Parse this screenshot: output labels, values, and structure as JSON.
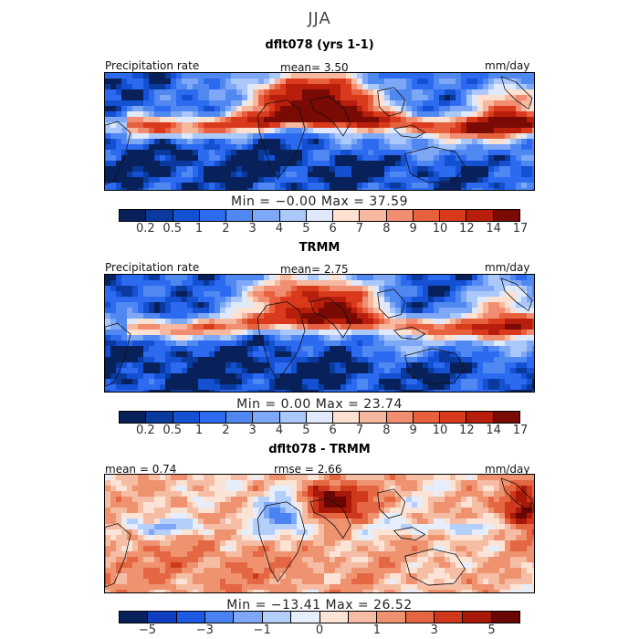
{
  "figure": {
    "season": "JJA"
  },
  "panels": [
    {
      "title": "dflt078 (yrs 1-1)",
      "header_left": "Precipitation rate",
      "header_center": "mean=   3.50",
      "header_right": "mm/day",
      "min_max": "Min =  −0.00  Max =  37.59",
      "colorbar": "abs"
    },
    {
      "title": "TRMM",
      "header_left": "Precipitation rate",
      "header_center": "mean=   2.75",
      "header_right": "mm/day",
      "min_max": "Min =    0.00  Max =  23.74",
      "colorbar": "abs"
    },
    {
      "title": "dflt078 - TRMM",
      "header_left": "mean =   0.74",
      "header_center": "rmse =   2.66",
      "header_right": "mm/day",
      "min_max": "Min = −13.41  Max =  26.52",
      "colorbar": "diff"
    }
  ],
  "colors": {
    "abs": [
      "#08215a",
      "#0a3a9e",
      "#1450d2",
      "#2c6af0",
      "#5088f2",
      "#7ea8f6",
      "#aac8fa",
      "#dfe9fb",
      "#fde0d0",
      "#f7b8a0",
      "#f18e72",
      "#e8613f",
      "#d93a1c",
      "#b81e0c",
      "#7a0a04"
    ],
    "diff": [
      "#08215a",
      "#0f3ec0",
      "#1f5ae6",
      "#4a82f2",
      "#7ea8f6",
      "#b4cffa",
      "#e6eefb",
      "#fbe3d6",
      "#f5bea4",
      "#ee9270",
      "#e46642",
      "#d0381c",
      "#a81808",
      "#6a0602"
    ]
  },
  "chart_data": [
    {
      "type": "heatmap",
      "title": "dflt078 (yrs 1-1)",
      "variable": "Precipitation rate",
      "units": "mm/day",
      "mean": 3.5,
      "min": -0.0,
      "max": 37.59,
      "colorbar_levels": [
        0.2,
        0.5,
        1,
        2,
        3,
        4,
        5,
        6,
        7,
        8,
        9,
        10,
        12,
        14,
        17
      ],
      "colorbar_labels": [
        "0.2",
        "0.5",
        "1",
        "2",
        "3",
        "4",
        "5",
        "6",
        "7",
        "8",
        "9",
        "10",
        "12",
        "14",
        "17"
      ]
    },
    {
      "type": "heatmap",
      "title": "TRMM",
      "variable": "Precipitation rate",
      "units": "mm/day",
      "mean": 2.75,
      "min": 0.0,
      "max": 23.74,
      "colorbar_levels": [
        0.2,
        0.5,
        1,
        2,
        3,
        4,
        5,
        6,
        7,
        8,
        9,
        10,
        12,
        14,
        17
      ],
      "colorbar_labels": [
        "0.2",
        "0.5",
        "1",
        "2",
        "3",
        "4",
        "5",
        "6",
        "7",
        "8",
        "9",
        "10",
        "12",
        "14",
        "17"
      ]
    },
    {
      "type": "heatmap",
      "title": "dflt078 - TRMM",
      "units": "mm/day",
      "mean": 0.74,
      "rmse": 2.66,
      "min": -13.41,
      "max": 26.52,
      "colorbar_levels": [
        -5,
        -3,
        -1,
        0,
        1,
        3,
        5
      ],
      "colorbar_labels": [
        "−5",
        "−3",
        "−1",
        "0",
        "1",
        "3",
        "5"
      ]
    }
  ]
}
